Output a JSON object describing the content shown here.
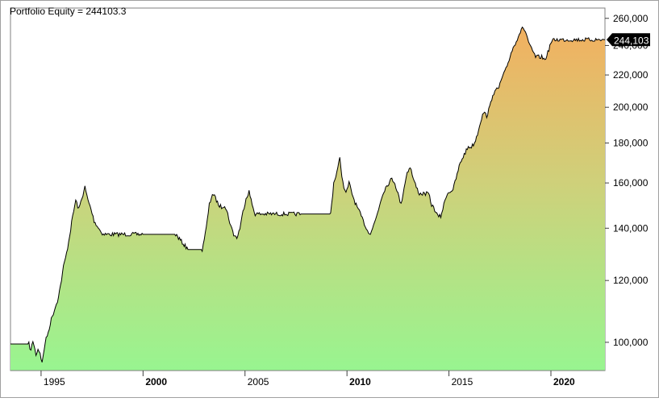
{
  "header": {
    "title": "Portfolio Equity = 244103.3"
  },
  "chart_data": {
    "type": "area",
    "title": "Portfolio Equity = 244103.3",
    "xlabel": "",
    "ylabel": "",
    "y_scale": "log",
    "ylim": [
      92000,
      268000
    ],
    "xlim": [
      1993.5,
      2022.65
    ],
    "x_ticks": [
      {
        "value": 1995,
        "label": "1995",
        "bold": false
      },
      {
        "value": 2000,
        "label": "2000",
        "bold": true
      },
      {
        "value": 2005,
        "label": "2005",
        "bold": false
      },
      {
        "value": 2010,
        "label": "2010",
        "bold": true
      },
      {
        "value": 2015,
        "label": "2015",
        "bold": false
      },
      {
        "value": 2020,
        "label": "2020",
        "bold": true
      }
    ],
    "y_ticks": [
      {
        "value": 100000,
        "label": "100,000"
      },
      {
        "value": 120000,
        "label": "120,000"
      },
      {
        "value": 140000,
        "label": "140,000"
      },
      {
        "value": 160000,
        "label": "160,000"
      },
      {
        "value": 180000,
        "label": "180,000"
      },
      {
        "value": 200000,
        "label": "200,000"
      },
      {
        "value": 220000,
        "label": "220,000"
      },
      {
        "value": 240000,
        "label": "240,000"
      },
      {
        "value": 260000,
        "label": "260,000"
      }
    ],
    "last_value_label": "244,103",
    "last_value": 244103,
    "grid": false,
    "legend": "none",
    "colors": {
      "fill_top": "#f2b060",
      "fill_mid": "#cfd07a",
      "fill_bottom": "#98f590",
      "line": "#000000",
      "marker_bg": "#000000",
      "marker_text": "#ffffff"
    },
    "series": [
      {
        "x": [
          1993.5,
          1994.4,
          1994.5,
          1994.6,
          1994.75,
          1994.85,
          1994.95,
          1995.05,
          1995.2,
          1995.35,
          1995.5,
          1995.65,
          1995.8,
          1995.95,
          1996.1,
          1996.25,
          1996.4,
          1996.55,
          1996.7,
          1996.85,
          1997.0,
          1997.15,
          1997.3,
          1997.45,
          1997.6,
          1997.75,
          1997.9,
          1998.05,
          1998.2,
          1998.35,
          1998.5,
          1998.65,
          1998.8,
          1998.95,
          1999.1,
          1999.25,
          1999.4,
          1999.55,
          1999.7,
          1999.85,
          2000.0,
          2001.6,
          2002.2,
          2002.9,
          2003.1,
          2003.25,
          2003.4,
          2003.55,
          2003.7,
          2003.85,
          2004.0,
          2004.15,
          2004.3,
          2004.45,
          2004.6,
          2004.75,
          2004.9,
          2005.05,
          2005.2,
          2005.35,
          2005.5,
          2005.65,
          2005.8,
          2005.95,
          2006.1,
          2006.25,
          2006.4,
          2006.55,
          2006.7,
          2006.85,
          2007.0,
          2007.15,
          2007.3,
          2007.45,
          2007.6,
          2007.75,
          2009.2,
          2009.35,
          2009.5,
          2009.65,
          2009.8,
          2009.95,
          2010.1,
          2010.25,
          2010.4,
          2010.55,
          2010.7,
          2010.85,
          2011.0,
          2011.15,
          2011.3,
          2011.45,
          2011.6,
          2011.75,
          2011.9,
          2012.05,
          2012.2,
          2012.35,
          2012.5,
          2012.65,
          2012.8,
          2012.95,
          2013.1,
          2013.25,
          2013.4,
          2013.55,
          2013.7,
          2013.85,
          2014.0,
          2014.15,
          2014.3,
          2014.45,
          2014.6,
          2014.75,
          2014.9,
          2015.05,
          2015.2,
          2015.35,
          2015.5,
          2015.65,
          2015.8,
          2015.95,
          2016.1,
          2016.25,
          2016.4,
          2016.55,
          2016.7,
          2016.85,
          2017.0,
          2017.15,
          2017.3,
          2017.45,
          2017.6,
          2017.75,
          2017.9,
          2018.05,
          2018.2,
          2018.35,
          2018.5,
          2018.65,
          2018.8,
          2018.95,
          2019.1,
          2019.25,
          2019.4,
          2019.55,
          2019.7,
          2019.85,
          2020.0,
          2020.15,
          2020.3,
          2020.45,
          2020.6,
          2020.75,
          2020.9,
          2021.05,
          2021.2,
          2021.35,
          2021.5,
          2021.65,
          2021.8,
          2021.95,
          2022.1,
          2022.25,
          2022.4,
          2022.55,
          2022.65
        ],
        "y": [
          99500,
          99500,
          97500,
          100500,
          96500,
          98000,
          97000,
          94000,
          100000,
          103000,
          107000,
          110000,
          113000,
          118000,
          125000,
          130000,
          137000,
          145000,
          152000,
          148000,
          153000,
          158000,
          152000,
          148000,
          143000,
          141000,
          139000,
          137500,
          137500,
          137500,
          137500,
          137500,
          137500,
          137500,
          137500,
          137500,
          137500,
          137500,
          137500,
          137500,
          137500,
          137500,
          131500,
          131500,
          140000,
          150000,
          155000,
          153000,
          150000,
          149000,
          150000,
          146000,
          141000,
          137500,
          136000,
          140000,
          147000,
          153000,
          156000,
          150000,
          146000,
          146000,
          146000,
          146000,
          146000,
          146000,
          146000,
          146000,
          146000,
          146000,
          146000,
          146000,
          146000,
          146000,
          146000,
          146000,
          146000,
          160000,
          165000,
          172000,
          160000,
          155000,
          160000,
          155000,
          151000,
          148000,
          145000,
          142000,
          139000,
          138000,
          141000,
          145000,
          150000,
          155000,
          158000,
          160000,
          162000,
          160000,
          155000,
          150000,
          158000,
          165000,
          168000,
          162000,
          158000,
          155000,
          155000,
          155000,
          155000,
          150000,
          148000,
          145000,
          145000,
          150000,
          155000,
          156000,
          157000,
          162000,
          168000,
          172000,
          175000,
          178000,
          178000,
          180000,
          185000,
          192000,
          197000,
          195000,
          200000,
          208000,
          210000,
          212000,
          218000,
          222000,
          228000,
          235000,
          240000,
          245000,
          250000,
          253000,
          248000,
          240000,
          236000,
          232000,
          232000,
          232000,
          230000,
          235000,
          242000,
          244103,
          244103,
          244103,
          244103,
          244103,
          244103,
          244103,
          244103,
          244103,
          244103,
          244103,
          244103,
          244103,
          244103,
          244103,
          244103,
          244103,
          244103
        ]
      }
    ]
  }
}
